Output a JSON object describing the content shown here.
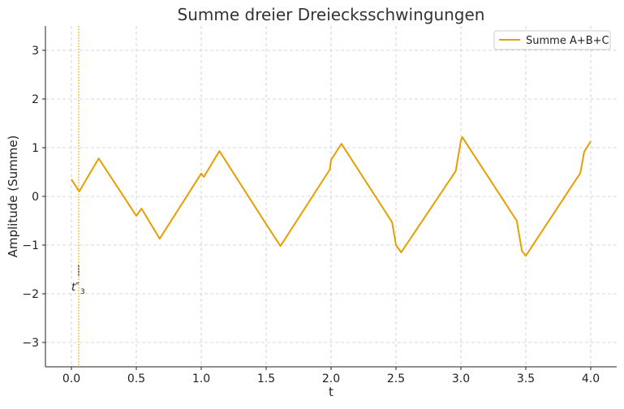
{
  "chart_data": {
    "type": "line",
    "title": "Summe dreier Dreiecksschwingungen",
    "xlabel": "t",
    "ylabel": "Amplitude (Summe)",
    "xlim": [
      -0.2,
      4.2
    ],
    "ylim": [
      -3.5,
      3.5
    ],
    "xticks": [
      0.0,
      0.5,
      1.0,
      1.5,
      2.0,
      2.5,
      3.0,
      3.5,
      4.0
    ],
    "xtick_labels": [
      "0.0",
      "0.5",
      "1.0",
      "1.5",
      "2.0",
      "2.5",
      "3.0",
      "3.5",
      "4.0"
    ],
    "yticks": [
      -3,
      -2,
      -1,
      0,
      1,
      2,
      3
    ],
    "ytick_labels": [
      "−3",
      "−2",
      "−1",
      "0",
      "1",
      "2",
      "3"
    ],
    "grid": true,
    "legend_position": "top-right",
    "series": [
      {
        "name": "Summe A+B+C",
        "color": "#E69F00",
        "x": [
          0,
          0.06,
          0.21,
          0.5,
          0.54,
          0.68,
          1.0,
          1.02,
          1.14,
          1.5,
          1.61,
          1.99,
          2.0,
          2.08,
          2.47,
          2.5,
          2.54,
          2.96,
          3.0,
          3.01,
          3.43,
          3.47,
          3.5,
          3.92,
          3.95,
          4.0
        ],
        "y": [
          0.35,
          0.1,
          0.78,
          -0.4,
          -0.25,
          -0.87,
          0.47,
          0.4,
          0.93,
          -0.57,
          -1.02,
          0.55,
          0.75,
          1.08,
          -0.53,
          -1.0,
          -1.15,
          0.52,
          1.15,
          1.22,
          -0.5,
          -1.12,
          -1.22,
          0.48,
          0.92,
          1.13
        ]
      }
    ],
    "annotations": [
      {
        "type": "vline",
        "x": 0.056,
        "color": "#E69F00",
        "style": "dotted"
      },
      {
        "text": "t″",
        "subscript": "3",
        "x": 0.056,
        "y": -1.85
      }
    ]
  }
}
